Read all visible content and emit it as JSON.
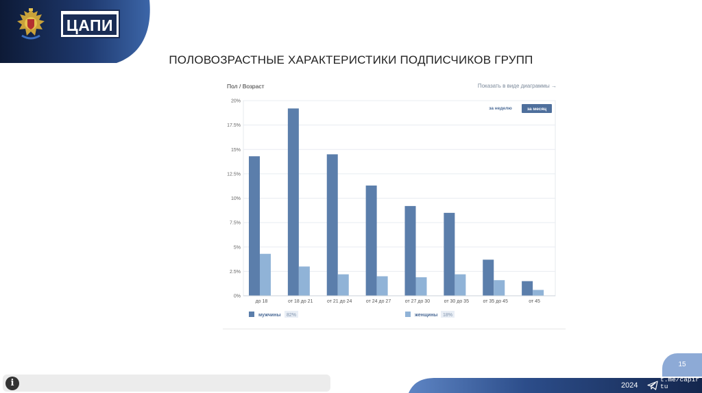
{
  "header": {
    "logo_text": "ЦАПИ",
    "title": "ПОЛОВОЗРАСТНЫЕ ХАРАКТЕРИСТИКИ ПОДПИСЧИКОВ ГРУПП"
  },
  "panel": {
    "title": "Пол / Возраст",
    "view_link": "Показать в виде диаграммы →",
    "period_week": "за неделю",
    "period_month": "за месяц",
    "active_period": "month"
  },
  "chart_data": {
    "type": "bar",
    "categories": [
      "до 18",
      "от 18 до 21",
      "от 21 до 24",
      "от 24 до 27",
      "от 27 до 30",
      "от 30 до 35",
      "от 35 до 45",
      "от 45"
    ],
    "yticks": [
      "0%",
      "2.5%",
      "5%",
      "7.5%",
      "10%",
      "12.5%",
      "15%",
      "17.5%",
      "20%"
    ],
    "ylim": [
      0,
      20
    ],
    "series": [
      {
        "name": "мужчины",
        "share": "82%",
        "color": "#5b7eab",
        "values": [
          14.3,
          19.2,
          14.5,
          11.3,
          9.2,
          8.5,
          3.7,
          1.5
        ]
      },
      {
        "name": "женщины",
        "share": "18%",
        "color": "#90b3d7",
        "values": [
          4.3,
          3.0,
          2.2,
          2.0,
          1.9,
          2.2,
          1.6,
          0.6
        ]
      }
    ],
    "title": "",
    "xlabel": "",
    "ylabel": ""
  },
  "footer": {
    "page_number": "15",
    "year": "2024",
    "channel": "t.me/capirtu"
  }
}
